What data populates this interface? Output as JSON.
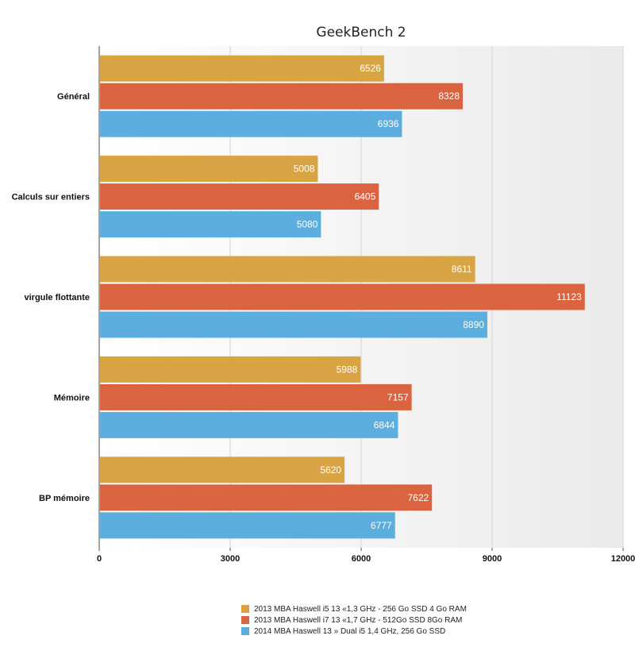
{
  "chart_data": {
    "type": "bar",
    "orientation": "horizontal",
    "title": "GeekBench 2",
    "xlabel": "",
    "ylabel": "",
    "categories": [
      "Général",
      "Calculs sur entiers",
      "virgule flottante",
      "Mémoire",
      "BP mémoire"
    ],
    "series": [
      {
        "name": "2013 MBA Haswell i5 13 «1,3 GHz - 256 Go SSD 4 Go RAM",
        "color": "#D9A444",
        "values": [
          6526,
          5008,
          8611,
          5988,
          5620
        ]
      },
      {
        "name": "2013 MBA Haswell i7 13 «1,7 GHz - 512Go SSD 8Go RAM",
        "color": "#DB6440",
        "values": [
          8328,
          6405,
          11123,
          7157,
          7622
        ]
      },
      {
        "name": "2014 MBA Haswell 13 » Dual i5 1,4 GHz, 256 Go SSD",
        "color": "#5BAEDE",
        "values": [
          6936,
          5080,
          8890,
          6844,
          6777
        ]
      }
    ],
    "xlim": [
      0,
      12000
    ],
    "xticks": [
      "0",
      "3000",
      "6000",
      "9000",
      "12000"
    ],
    "grid": true,
    "legend_position": "bottom"
  }
}
